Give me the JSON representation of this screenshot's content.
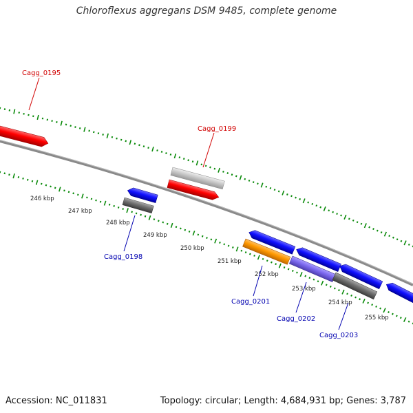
{
  "title": "Chloroflexus aggregans DSM 9485, complete genome",
  "footer": {
    "accession": "Accession: NC_011831",
    "topology": "Topology: circular; Length: 4,684,931 bp; Genes: 3,787"
  },
  "colors": {
    "forward_label": "#d10000",
    "reverse_label": "#0000b0",
    "backbone": "#888888",
    "tick": "#0a8a0a",
    "red": "#ff0000",
    "blue": "#1010ff",
    "gray": "#6f6f6f",
    "lightgray": "#c8c8c8",
    "orange": "#ff9900",
    "purple": "#7b68ee"
  },
  "scale": {
    "tick_labels": [
      "246 kbp",
      "247 kbp",
      "248 kbp",
      "249 kbp",
      "250 kbp",
      "251 kbp",
      "252 kbp",
      "253 kbp",
      "254 kbp",
      "255 kbp"
    ]
  },
  "gene_labels": [
    {
      "name": "Cagg_0195",
      "strand": "forward"
    },
    {
      "name": "Cagg_0199",
      "strand": "forward"
    },
    {
      "name": "Cagg_0198",
      "strand": "reverse"
    },
    {
      "name": "Cagg_0201",
      "strand": "reverse"
    },
    {
      "name": "Cagg_0202",
      "strand": "reverse"
    },
    {
      "name": "Cagg_0203",
      "strand": "reverse"
    }
  ]
}
